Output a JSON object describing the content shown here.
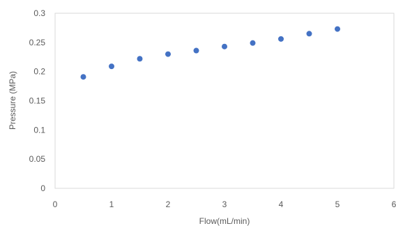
{
  "chart_data": {
    "type": "scatter",
    "title": "",
    "xlabel": "Flow(mL/min)",
    "ylabel": "Pressure (MPa)",
    "xlim": [
      0,
      6
    ],
    "ylim": [
      0,
      0.3
    ],
    "x_ticks": [
      0,
      1,
      2,
      3,
      4,
      5,
      6
    ],
    "x_tick_labels": [
      "0",
      "1",
      "2",
      "3",
      "4",
      "5",
      "6"
    ],
    "y_ticks": [
      0,
      0.05,
      0.1,
      0.15,
      0.2,
      0.25,
      0.3
    ],
    "y_tick_labels": [
      "0",
      "0.05",
      "0.1",
      "0.15",
      "0.2",
      "0.25",
      "0.3"
    ],
    "grid": "none",
    "legend": "none",
    "series": [
      {
        "color": "#4472C4",
        "points": [
          {
            "x": 0.5,
            "y": 0.191
          },
          {
            "x": 1.0,
            "y": 0.209
          },
          {
            "x": 1.5,
            "y": 0.222
          },
          {
            "x": 2.0,
            "y": 0.23
          },
          {
            "x": 2.5,
            "y": 0.236
          },
          {
            "x": 3.0,
            "y": 0.243
          },
          {
            "x": 3.5,
            "y": 0.249
          },
          {
            "x": 4.0,
            "y": 0.256
          },
          {
            "x": 4.5,
            "y": 0.265
          },
          {
            "x": 5.0,
            "y": 0.273
          }
        ]
      }
    ]
  }
}
